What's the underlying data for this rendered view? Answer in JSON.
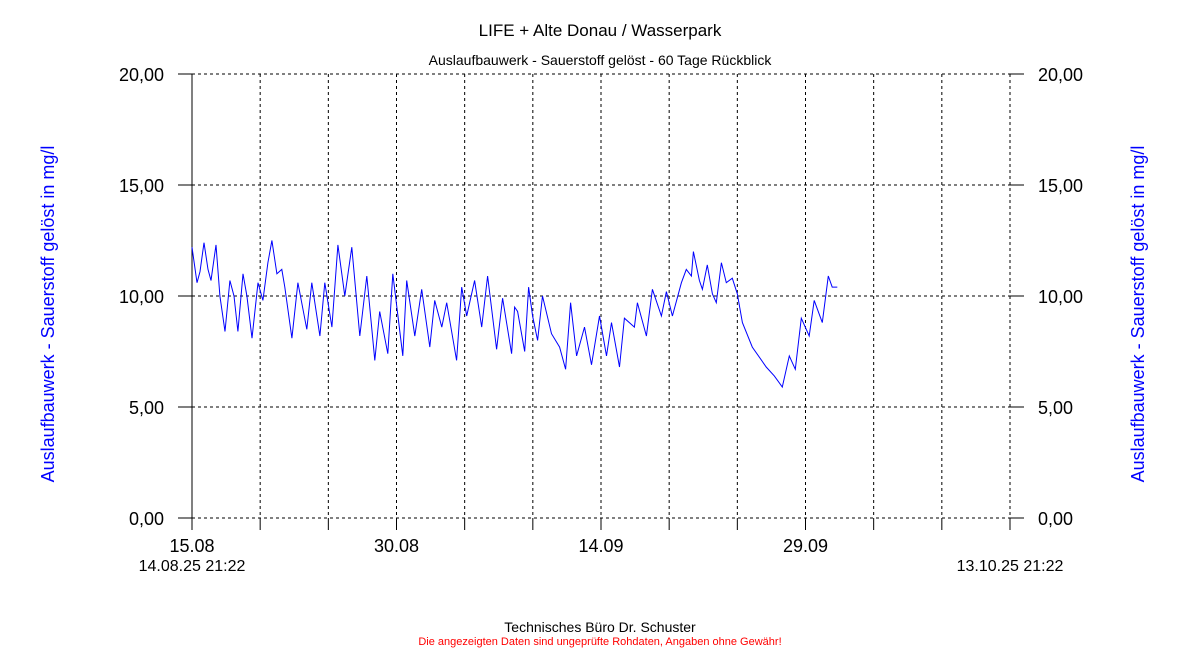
{
  "chart_data": {
    "type": "line",
    "title": "LIFE + Alte Donau / Wasserpark",
    "subtitle": "Auslaufbauwerk - Sauerstoff gelöst - 60 Tage Rückblick",
    "ylabel_left": "Auslaufbauwerk - Sauerstoff gelöst in mg/l",
    "ylabel_right": "Auslaufbauwerk - Sauerstoff gelöst in mg/l",
    "ylim": [
      0,
      20
    ],
    "yticks": [
      0,
      5,
      10,
      15,
      20
    ],
    "ytick_labels": [
      "0,00",
      "5,00",
      "10,00",
      "15,00",
      "20,00"
    ],
    "xlim_days": [
      0,
      60
    ],
    "x_unit": "days since 14.08.25 21:22",
    "xtick_every_days": 5,
    "xtick_labels": [
      {
        "day": 0,
        "label": "15.08"
      },
      {
        "day": 15,
        "label": "30.08"
      },
      {
        "day": 30,
        "label": "14.09"
      },
      {
        "day": 45,
        "label": "29.09"
      }
    ],
    "start_label": "14.08.25 21:22",
    "end_label": "13.10.25 21:22",
    "grid": true,
    "series": [
      {
        "name": "Sauerstoff gelöst",
        "color": "#0000ff",
        "points": [
          [
            0.0,
            12.2
          ],
          [
            0.37,
            10.6
          ],
          [
            0.59,
            11.1
          ],
          [
            0.88,
            12.4
          ],
          [
            1.17,
            11.2
          ],
          [
            1.39,
            10.7
          ],
          [
            1.76,
            12.3
          ],
          [
            2.05,
            10.0
          ],
          [
            2.42,
            8.4
          ],
          [
            2.78,
            10.7
          ],
          [
            3.08,
            10.0
          ],
          [
            3.37,
            8.4
          ],
          [
            3.74,
            11.0
          ],
          [
            4.03,
            10.0
          ],
          [
            4.4,
            8.1
          ],
          [
            4.84,
            10.6
          ],
          [
            5.2,
            9.8
          ],
          [
            5.57,
            11.5
          ],
          [
            5.86,
            12.5
          ],
          [
            6.23,
            11.0
          ],
          [
            6.59,
            11.2
          ],
          [
            6.81,
            10.4
          ],
          [
            7.33,
            8.1
          ],
          [
            7.77,
            10.6
          ],
          [
            8.42,
            8.5
          ],
          [
            8.79,
            10.6
          ],
          [
            9.38,
            8.2
          ],
          [
            9.74,
            10.6
          ],
          [
            10.26,
            8.6
          ],
          [
            10.7,
            12.3
          ],
          [
            11.21,
            10.0
          ],
          [
            11.72,
            12.2
          ],
          [
            12.31,
            8.2
          ],
          [
            12.82,
            10.9
          ],
          [
            13.41,
            7.1
          ],
          [
            13.77,
            9.3
          ],
          [
            14.36,
            7.4
          ],
          [
            14.73,
            11.0
          ],
          [
            15.46,
            7.3
          ],
          [
            15.75,
            10.7
          ],
          [
            16.34,
            8.2
          ],
          [
            16.85,
            10.3
          ],
          [
            17.44,
            7.7
          ],
          [
            17.8,
            9.8
          ],
          [
            18.32,
            8.6
          ],
          [
            18.68,
            9.7
          ],
          [
            19.41,
            7.1
          ],
          [
            19.78,
            10.4
          ],
          [
            20.15,
            9.1
          ],
          [
            20.73,
            10.7
          ],
          [
            21.25,
            8.6
          ],
          [
            21.68,
            10.9
          ],
          [
            22.34,
            7.6
          ],
          [
            22.78,
            9.9
          ],
          [
            23.44,
            7.4
          ],
          [
            23.66,
            9.5
          ],
          [
            23.88,
            9.3
          ],
          [
            24.4,
            7.5
          ],
          [
            24.69,
            10.4
          ],
          [
            24.98,
            9.1
          ],
          [
            25.35,
            8.0
          ],
          [
            25.71,
            10.0
          ],
          [
            26.37,
            8.3
          ],
          [
            26.96,
            7.7
          ],
          [
            27.4,
            6.7
          ],
          [
            27.77,
            9.7
          ],
          [
            28.21,
            7.3
          ],
          [
            28.79,
            8.6
          ],
          [
            29.3,
            6.9
          ],
          [
            29.89,
            9.1
          ],
          [
            30.4,
            7.3
          ],
          [
            30.77,
            8.8
          ],
          [
            31.36,
            6.8
          ],
          [
            31.72,
            9.0
          ],
          [
            32.45,
            8.6
          ],
          [
            32.67,
            9.7
          ],
          [
            33.33,
            8.2
          ],
          [
            33.77,
            10.3
          ],
          [
            34.43,
            9.1
          ],
          [
            34.8,
            10.2
          ],
          [
            35.24,
            9.1
          ],
          [
            35.9,
            10.6
          ],
          [
            36.26,
            11.2
          ],
          [
            36.63,
            10.9
          ],
          [
            36.78,
            12.0
          ],
          [
            37.22,
            10.7
          ],
          [
            37.44,
            10.3
          ],
          [
            37.8,
            11.4
          ],
          [
            38.17,
            10.1
          ],
          [
            38.46,
            9.7
          ],
          [
            38.83,
            11.5
          ],
          [
            39.19,
            10.6
          ],
          [
            39.63,
            10.8
          ],
          [
            40.0,
            10.1
          ],
          [
            40.37,
            8.8
          ],
          [
            41.1,
            7.7
          ],
          [
            42.12,
            6.8
          ],
          [
            42.71,
            6.4
          ],
          [
            43.3,
            5.9
          ],
          [
            43.81,
            7.3
          ],
          [
            44.25,
            6.7
          ],
          [
            44.69,
            9.0
          ],
          [
            45.27,
            8.2
          ],
          [
            45.64,
            9.8
          ],
          [
            46.23,
            8.8
          ],
          [
            46.67,
            10.9
          ],
          [
            46.96,
            10.4
          ],
          [
            47.33,
            10.4
          ]
        ]
      }
    ]
  },
  "footer": {
    "company": "Technisches Büro Dr. Schuster",
    "disclaimer": "Die angezeigten Daten sind ungeprüfte Rohdaten, Angaben ohne Gewähr!",
    "disclaimer_color": "#ff0000"
  }
}
